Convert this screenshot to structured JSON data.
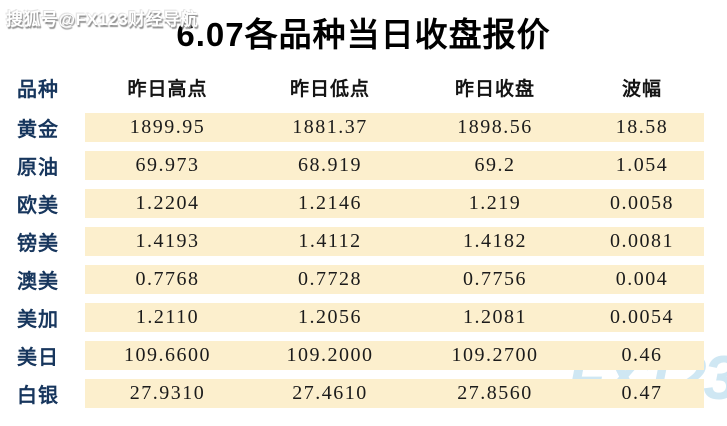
{
  "page": {
    "watermark_top": "搜狐号@FX123财经导航",
    "watermark_brand": "FX123",
    "title": "6.07各品种当日收盘报价"
  },
  "colors": {
    "label_navy": "#17365d",
    "cell_cream": "#fcefcd",
    "brand_watermark_blue": "#cfe7f3",
    "header_black": "#141414"
  },
  "chart_data": {
    "type": "table",
    "title": "6.07各品种当日收盘报价",
    "columns": [
      "品种",
      "昨日高点",
      "昨日低点",
      "昨日收盘",
      "波幅"
    ],
    "rows": [
      [
        "黄金",
        "1899.95",
        "1881.37",
        "1898.56",
        "18.58"
      ],
      [
        "原油",
        "69.973",
        "68.919",
        "69.2",
        "1.054"
      ],
      [
        "欧美",
        "1.2204",
        "1.2146",
        "1.219",
        "0.0058"
      ],
      [
        "镑美",
        "1.4193",
        "1.4112",
        "1.4182",
        "0.0081"
      ],
      [
        "澳美",
        "0.7768",
        "0.7728",
        "0.7756",
        "0.004"
      ],
      [
        "美加",
        "1.2110",
        "1.2056",
        "1.2081",
        "0.0054"
      ],
      [
        "美日",
        "109.6600",
        "109.2000",
        "109.2700",
        "0.46"
      ],
      [
        "白银",
        "27.9310",
        "27.4610",
        "27.8560",
        "0.47"
      ]
    ]
  }
}
